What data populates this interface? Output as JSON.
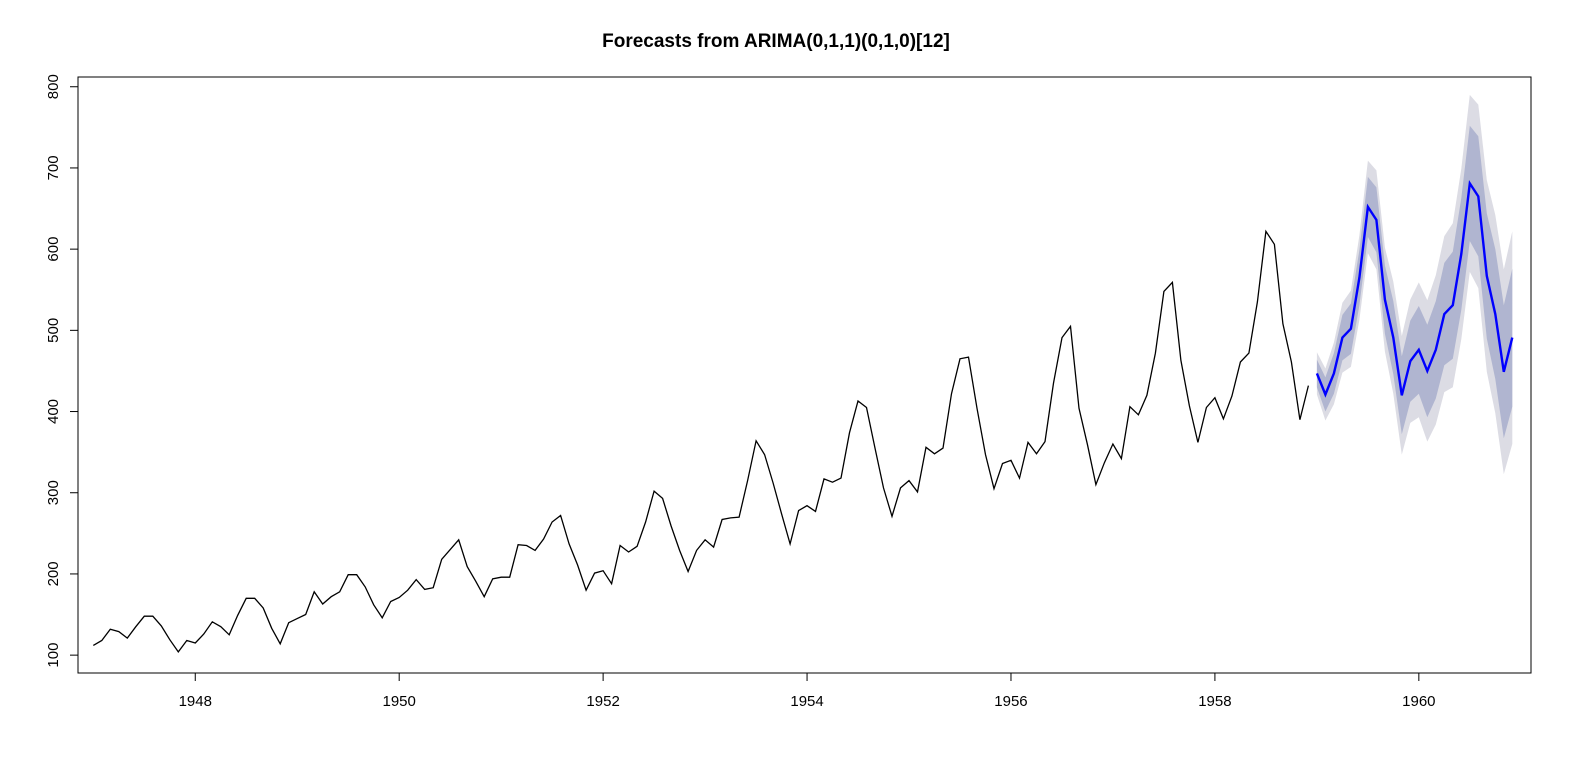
{
  "chart_data": {
    "type": "line",
    "title": "Forecasts from ARIMA(0,1,1)(0,1,0)[12]",
    "xlabel": "",
    "ylabel": "",
    "xlim": [
      1946.85,
      1961.1
    ],
    "ylim": [
      78,
      812
    ],
    "x_ticks": [
      1948,
      1950,
      1952,
      1954,
      1956,
      1958,
      1960
    ],
    "x_tick_labels": [
      "1948",
      "1950",
      "1952",
      "1954",
      "1956",
      "1958",
      "1960"
    ],
    "y_ticks": [
      100,
      200,
      300,
      400,
      500,
      600,
      700,
      800
    ],
    "y_tick_labels": [
      "100",
      "200",
      "300",
      "400",
      "500",
      "600",
      "700",
      "800"
    ],
    "grid": false,
    "legend": "none",
    "colors": {
      "history": "#000000",
      "forecast": "#0000ff",
      "interval_80": "#b0b5d0",
      "interval_95": "#dcdce4",
      "frame": "#000000"
    },
    "history": {
      "start": 1947.0,
      "frequency": 12,
      "values": [
        112,
        118,
        132,
        129,
        121,
        135,
        148,
        148,
        136,
        119,
        104,
        118,
        115,
        126,
        141,
        135,
        125,
        149,
        170,
        170,
        158,
        133,
        114,
        140,
        145,
        150,
        178,
        163,
        172,
        178,
        199,
        199,
        184,
        162,
        146,
        166,
        171,
        180,
        193,
        181,
        183,
        218,
        230,
        242,
        209,
        191,
        172,
        194,
        196,
        196,
        236,
        235,
        229,
        243,
        264,
        272,
        237,
        211,
        180,
        201,
        204,
        188,
        235,
        227,
        234,
        264,
        302,
        293,
        259,
        229,
        203,
        229,
        242,
        233,
        267,
        269,
        270,
        315,
        364,
        347,
        312,
        274,
        237,
        278,
        284,
        277,
        317,
        313,
        318,
        374,
        413,
        405,
        355,
        306,
        271,
        306,
        315,
        301,
        356,
        348,
        355,
        422,
        465,
        467,
        404,
        347,
        305,
        336,
        340,
        318,
        362,
        348,
        363,
        435,
        491,
        505,
        404,
        359,
        310,
        337,
        360,
        342,
        406,
        396,
        420,
        472,
        548,
        559,
        463,
        407,
        362,
        405,
        417,
        391,
        419,
        461,
        472,
        535,
        622,
        606,
        508,
        461,
        390,
        432
      ]
    },
    "forecast": {
      "start": 1959.0,
      "frequency": 12,
      "mean": [
        447,
        421,
        447,
        491,
        502,
        565,
        652,
        636,
        538,
        491,
        420,
        462,
        476,
        450,
        476,
        520,
        531,
        594,
        681,
        665,
        567,
        520,
        449,
        491
      ],
      "lo80": [
        430,
        400,
        422,
        463,
        471,
        531,
        615,
        596,
        496,
        446,
        372,
        412,
        422,
        393,
        416,
        457,
        465,
        525,
        610,
        591,
        490,
        440,
        367,
        406
      ],
      "hi80": [
        464,
        442,
        472,
        519,
        533,
        599,
        689,
        676,
        580,
        536,
        468,
        512,
        530,
        507,
        536,
        583,
        597,
        663,
        752,
        739,
        644,
        600,
        531,
        576
      ],
      "lo95": [
        421,
        389,
        409,
        448,
        455,
        513,
        595,
        575,
        474,
        422,
        347,
        386,
        393,
        363,
        384,
        424,
        430,
        489,
        572,
        552,
        449,
        398,
        323,
        360
      ],
      "hi95": [
        473,
        453,
        485,
        534,
        549,
        617,
        709,
        697,
        602,
        560,
        493,
        538,
        559,
        537,
        568,
        616,
        632,
        699,
        790,
        778,
        685,
        642,
        575,
        622
      ]
    }
  }
}
